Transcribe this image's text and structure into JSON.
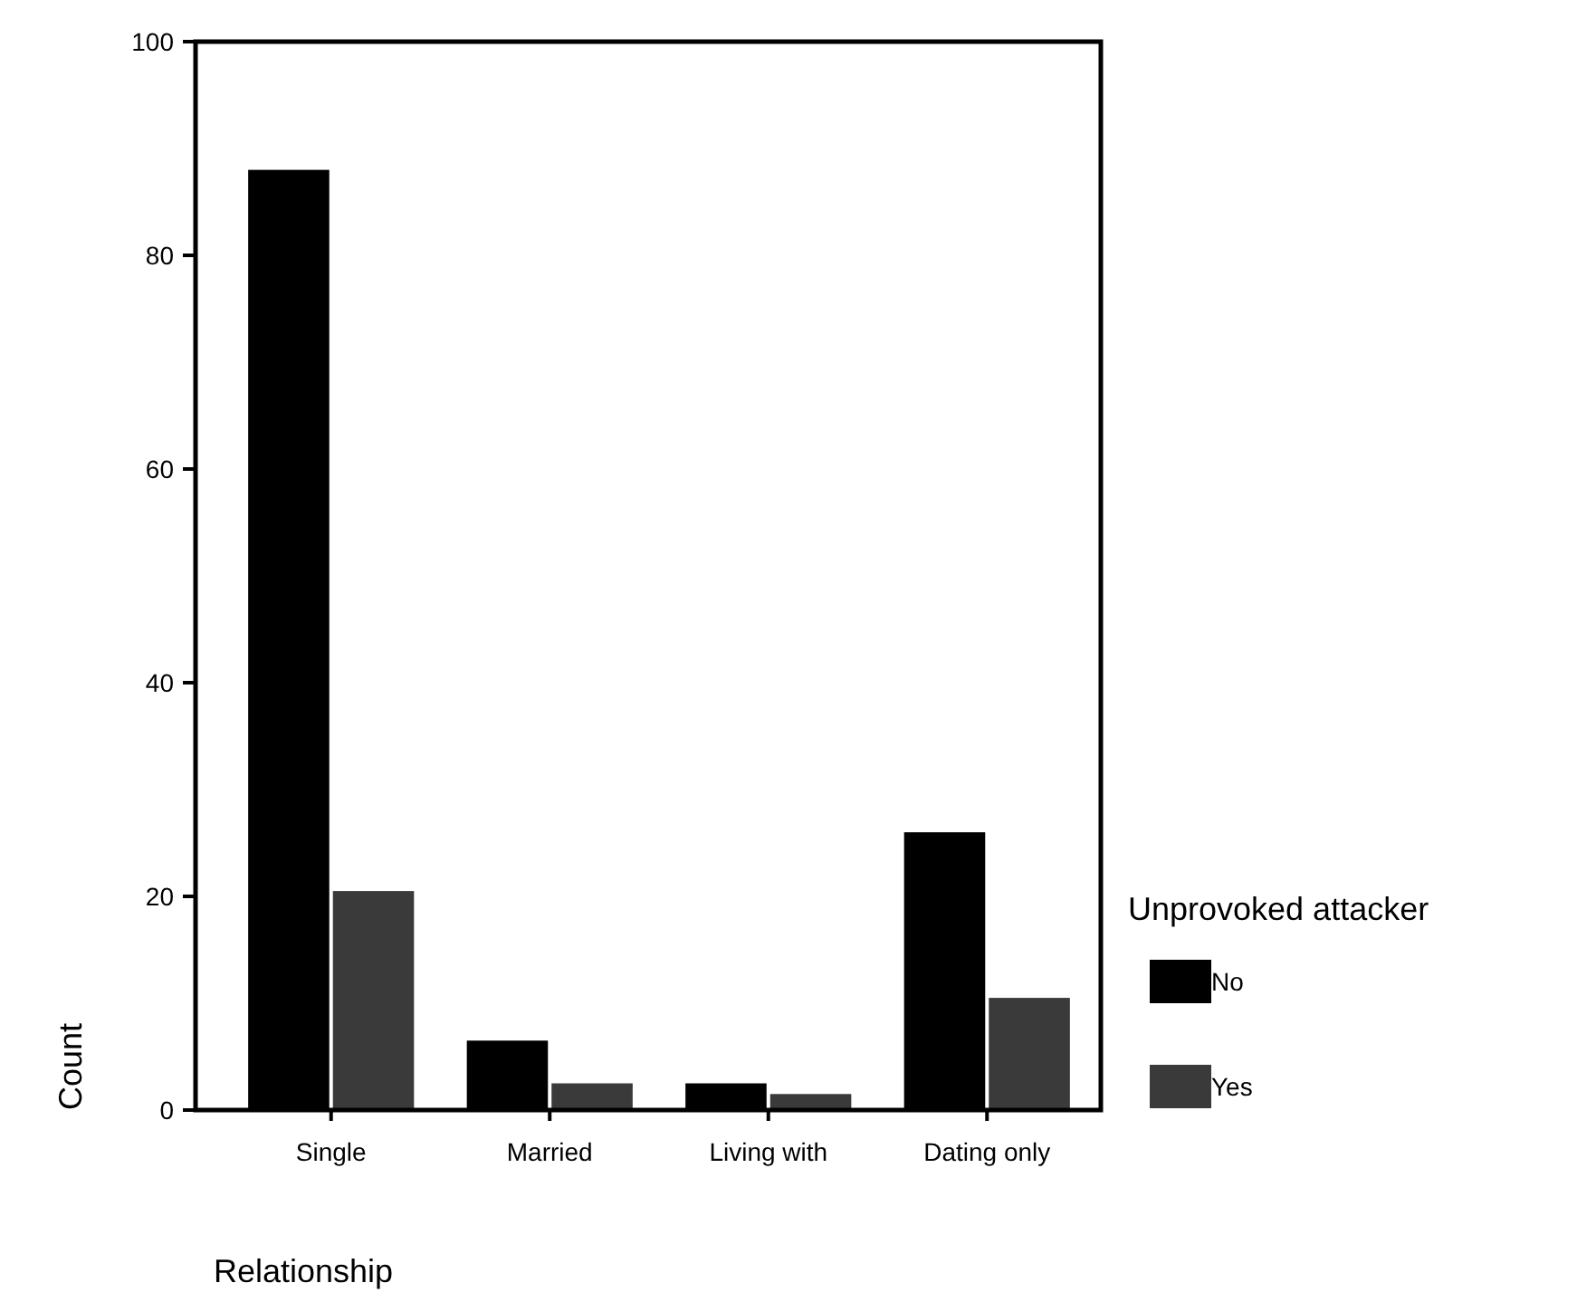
{
  "chart_data": {
    "type": "bar",
    "xlabel": "Relationship",
    "ylabel": "Count",
    "legend_title": "Unprovoked attacker",
    "categories": [
      "Single",
      "Married",
      "Living with",
      "Dating only"
    ],
    "series": [
      {
        "name": "No",
        "color": "#000000",
        "values": [
          88,
          6.5,
          2.5,
          26
        ]
      },
      {
        "name": "Yes",
        "color": "#3a3a3a",
        "values": [
          20.5,
          2.5,
          1.5,
          10.5
        ]
      }
    ],
    "ylim": [
      0,
      100
    ],
    "yticks": [
      0,
      20,
      40,
      60,
      80,
      100
    ],
    "legend": "right"
  }
}
